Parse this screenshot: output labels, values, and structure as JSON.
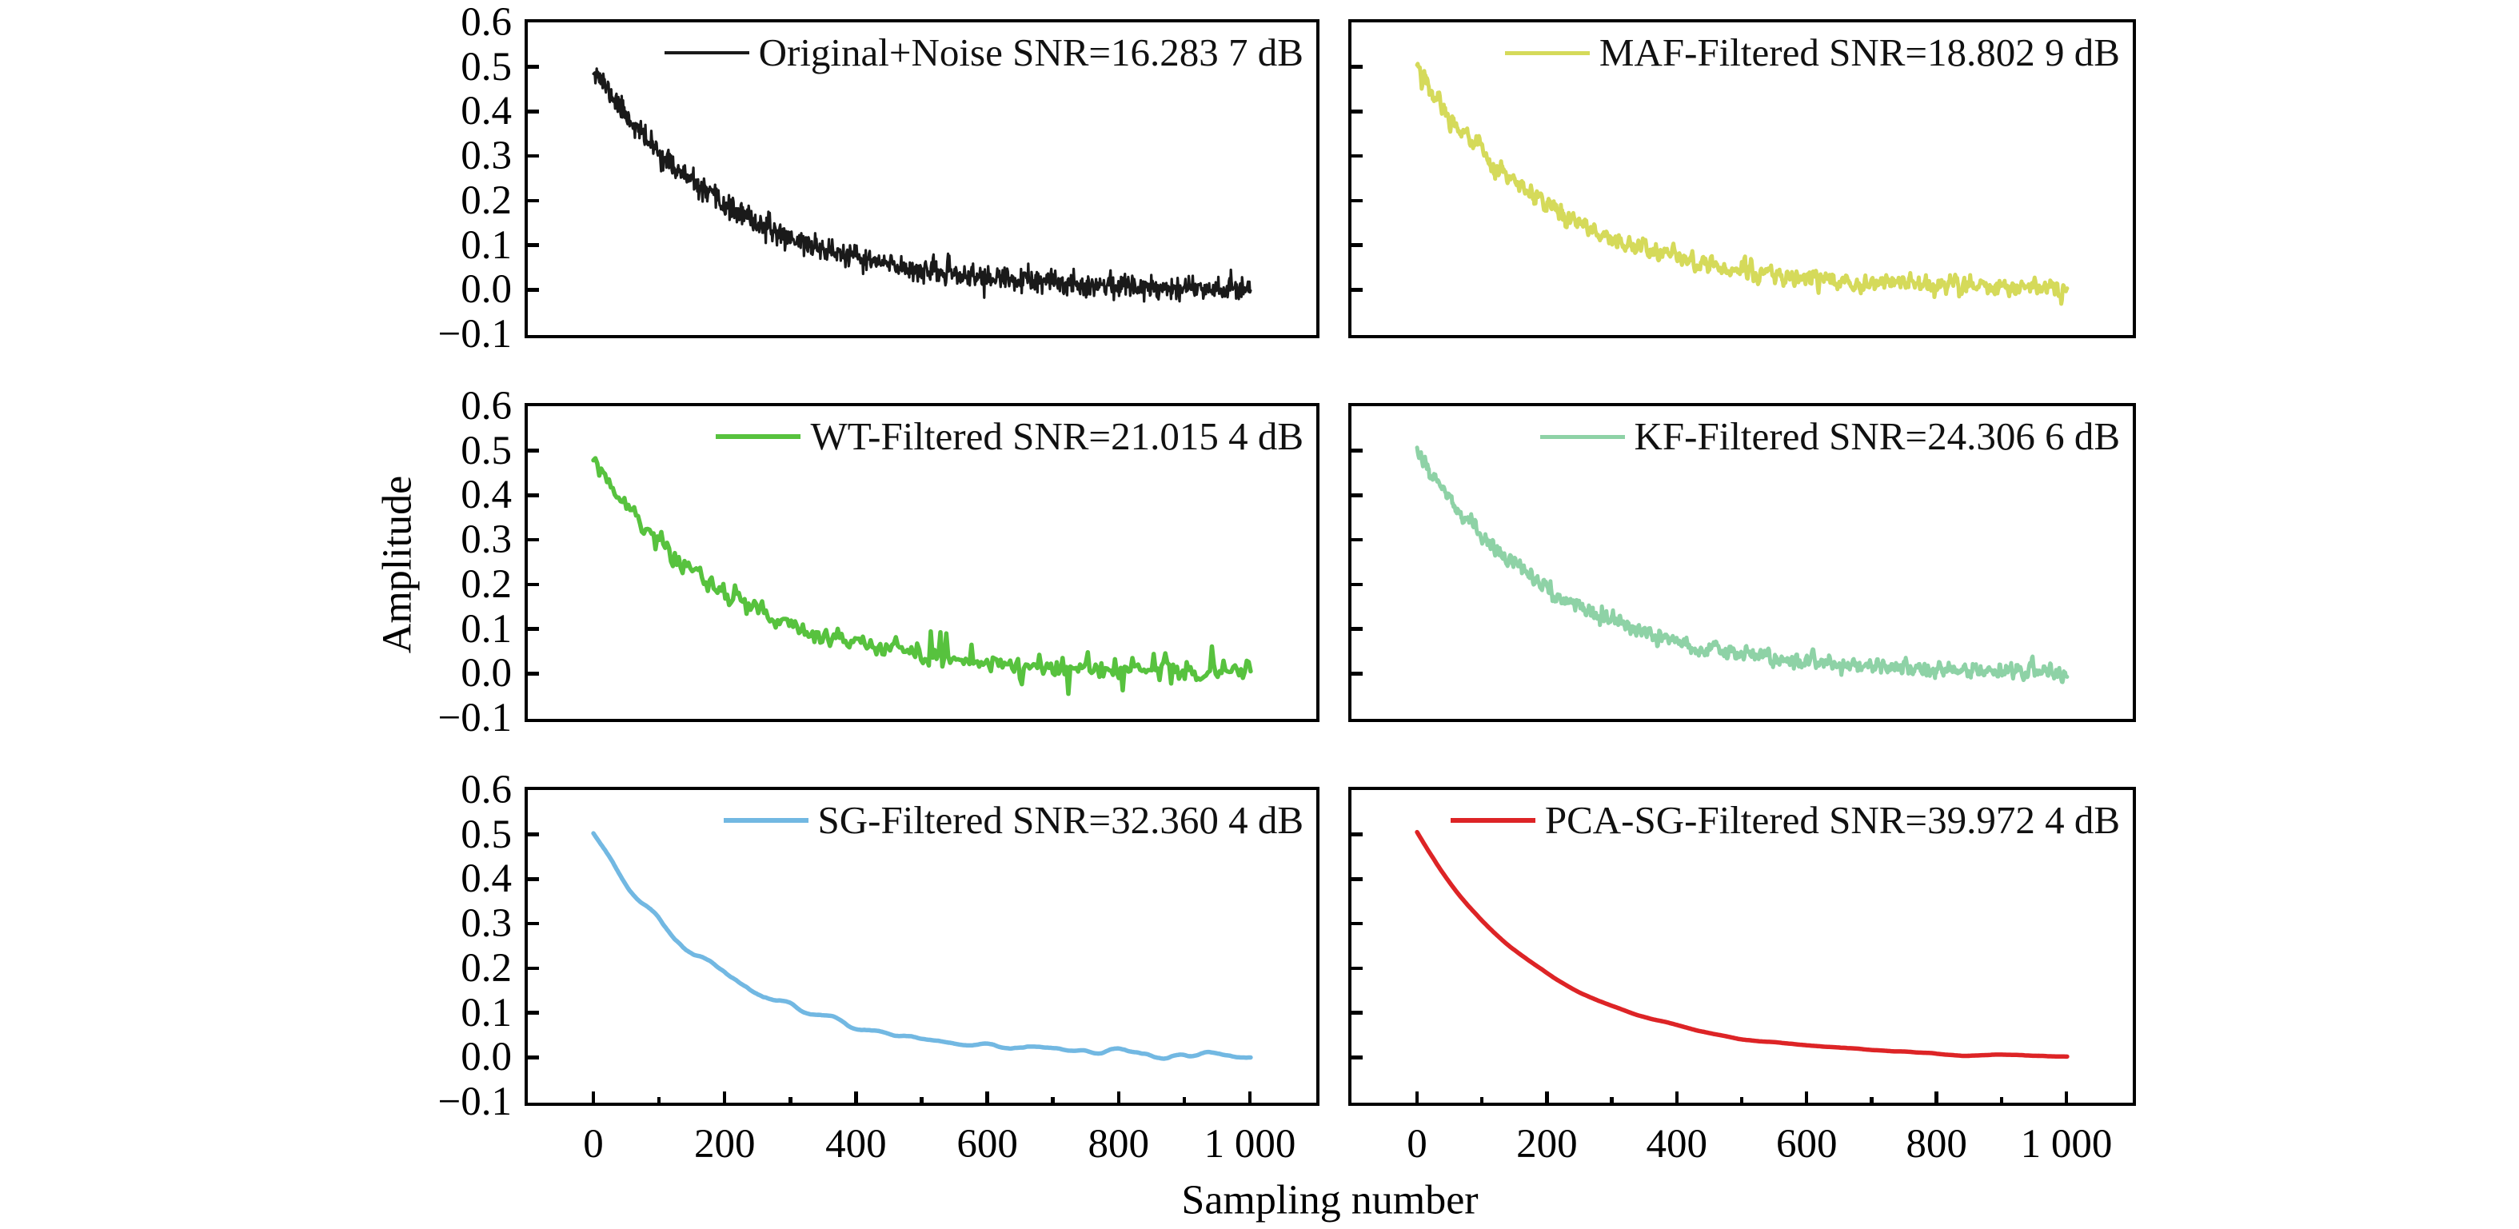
{
  "chart_data": {
    "type": "line",
    "grid": "3 rows x 2 columns",
    "title": "",
    "xlabel": "Sampling number",
    "ylabel": "Amplitude",
    "xlim": [
      0,
      1000
    ],
    "ylim": [
      -0.1,
      0.6
    ],
    "xticks": {
      "major": [
        0,
        200,
        400,
        600,
        800,
        1000
      ],
      "labels": [
        "0",
        "200",
        "400",
        "600",
        "800",
        "1 000"
      ],
      "minor": [
        100,
        300,
        500,
        700,
        900
      ]
    },
    "yticks": {
      "values": [
        0.6,
        0.5,
        0.4,
        0.3,
        0.2,
        0.1,
        0.0,
        -0.1
      ],
      "labels": [
        "0.6",
        "0.5",
        "0.4",
        "0.3",
        "0.2",
        "0.1",
        "0.0",
        "−0.1"
      ]
    },
    "legend_position": "upper right inside each subplot",
    "model": "y = peak * exp(-x/tau) + noise",
    "subplots": [
      {
        "name": "original-noise",
        "legend": "Original+Noise SNR=16.283 7 dB",
        "snr_db": 16.2837,
        "color": "#1a1a1a",
        "peak": 0.5,
        "tau": 207,
        "points": 1000,
        "noise_sigma": 0.013,
        "smooth_window": 1,
        "smooth_passes": 1,
        "spike_prob": 0,
        "spike_max": 0,
        "stroke_width": 3.2,
        "seed": 11
      },
      {
        "name": "maf-filtered",
        "legend": "MAF-Filtered SNR=18.802 9 dB",
        "snr_db": 18.8029,
        "color": "#d5da5a",
        "peak": 0.5,
        "tau": 207,
        "points": 1000,
        "noise_sigma": 0.018,
        "smooth_window": 3,
        "smooth_passes": 1,
        "spike_prob": 0,
        "spike_max": 0,
        "stroke_width": 5,
        "seed": 22
      },
      {
        "name": "wt-filtered",
        "legend": "WT-Filtered SNR=21.015 4 dB",
        "snr_db": 21.0154,
        "color": "#57c23e",
        "peak": 0.48,
        "tau": 207,
        "points": 340,
        "noise_sigma": 0.011,
        "smooth_window": 1,
        "smooth_passes": 1,
        "spike_prob": 0.05,
        "spike_max": 0.05,
        "stroke_width": 5.5,
        "seed": 33
      },
      {
        "name": "kf-filtered",
        "legend": "KF-Filtered SNR=24.306 6 dB",
        "snr_db": 24.3066,
        "color": "#8ed2a6",
        "peak": 0.5,
        "tau": 207,
        "points": 1000,
        "noise_sigma": 0.015,
        "smooth_window": 3,
        "smooth_passes": 1,
        "spike_prob": 0,
        "spike_max": 0,
        "stroke_width": 5,
        "seed": 44
      },
      {
        "name": "sg-filtered",
        "legend": "SG-Filtered SNR=32.360 4 dB",
        "snr_db": 32.3604,
        "color": "#72b8e2",
        "peak": 0.495,
        "tau": 207,
        "points": 600,
        "noise_sigma": 0.02,
        "smooth_window": 15,
        "smooth_passes": 2,
        "spike_prob": 0,
        "spike_max": 0,
        "stroke_width": 5.5,
        "seed": 55
      },
      {
        "name": "pca-sg-filtered",
        "legend": "PCA-SG-Filtered SNR=39.972 4 dB",
        "snr_db": 39.9724,
        "color": "#dd2426",
        "peak": 0.5,
        "tau": 207,
        "points": 400,
        "noise_sigma": 0.01,
        "smooth_window": 20,
        "smooth_passes": 2,
        "spike_prob": 0,
        "spike_max": 0,
        "stroke_width": 5.5,
        "seed": 66
      }
    ]
  }
}
